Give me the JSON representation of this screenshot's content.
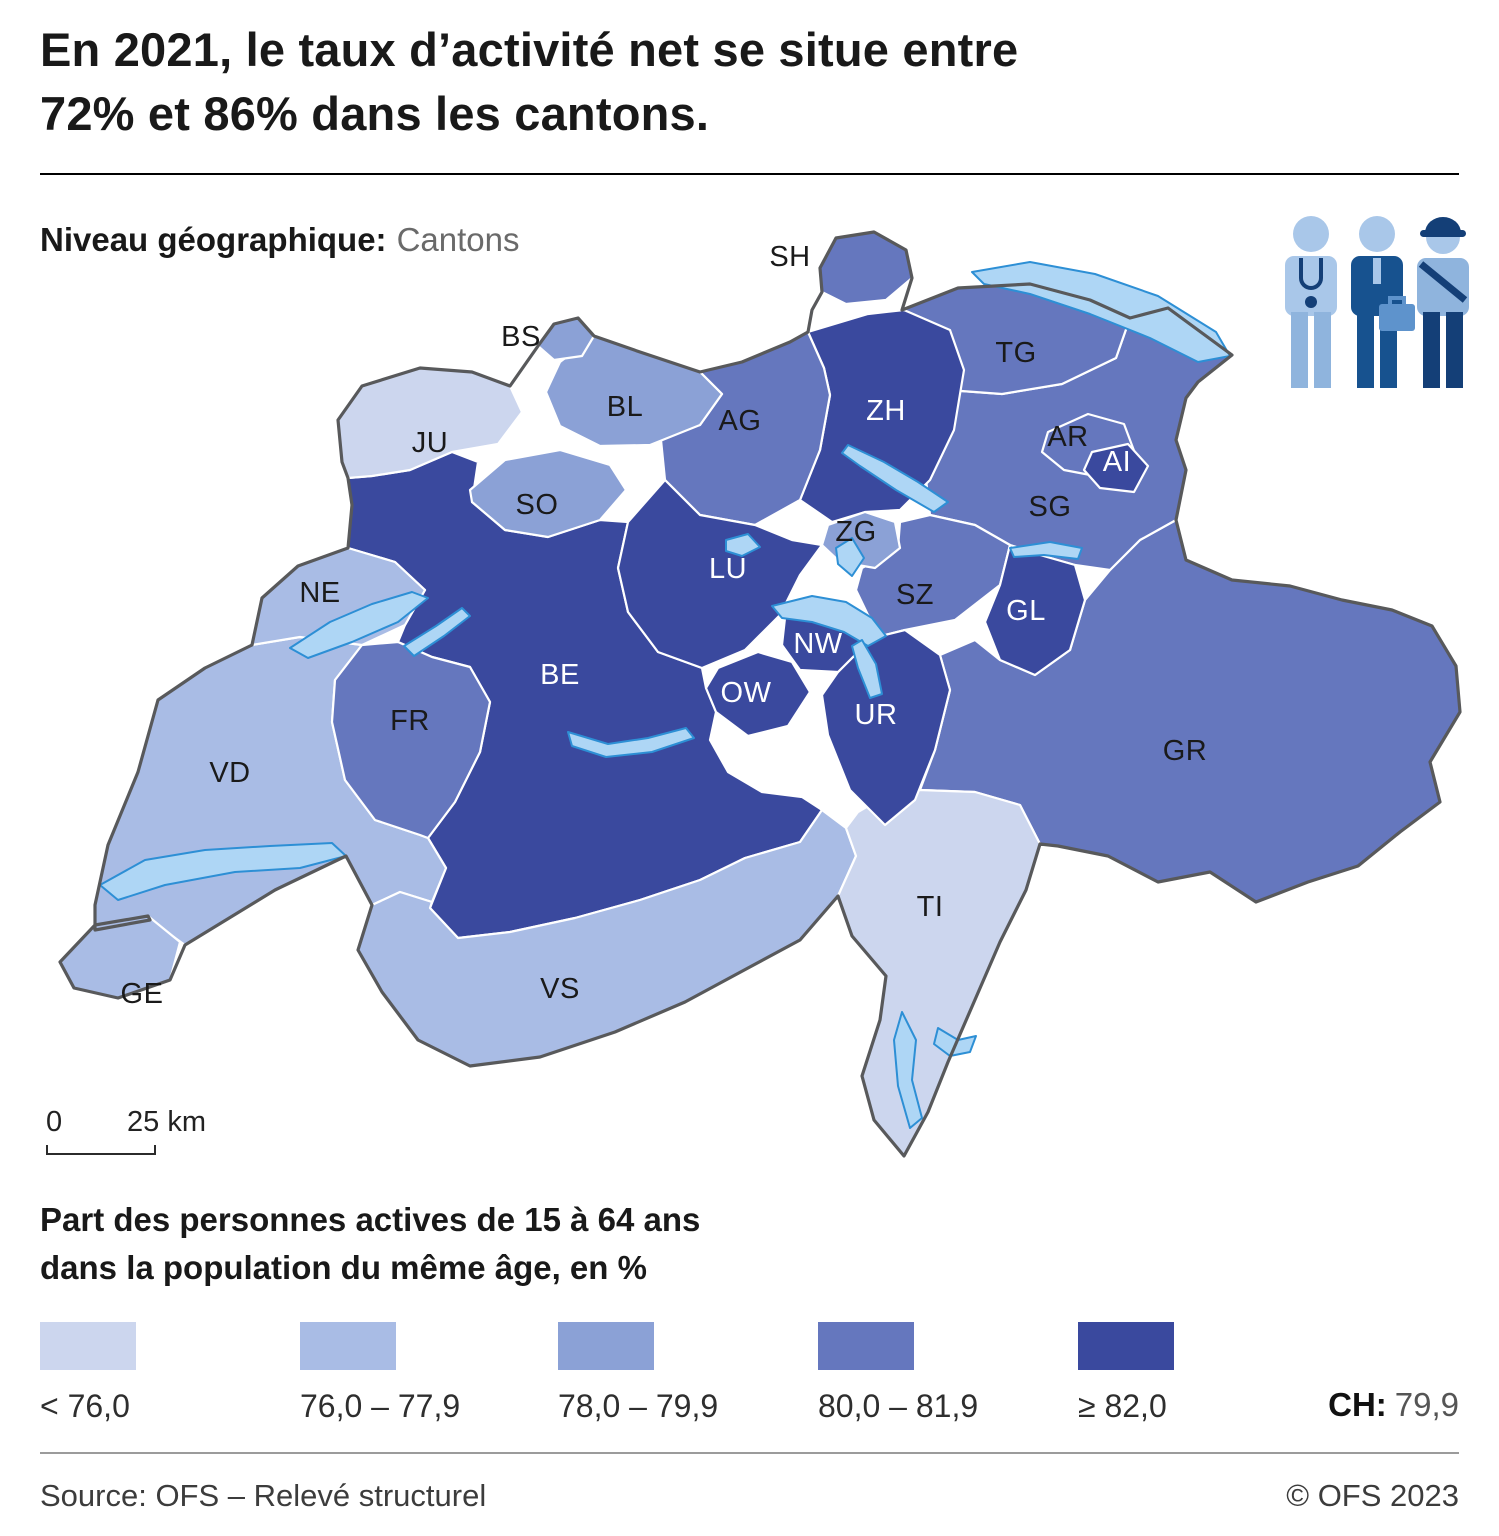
{
  "title": {
    "line1": "En 2021, le taux d’activité net se situe entre",
    "line2": "72% et 86% dans les cantons."
  },
  "subtitle": {
    "label": "Niveau géographique:",
    "value": "Cantons"
  },
  "map": {
    "label_dark": "#1a1a1a",
    "label_light": "#ffffff",
    "lake_fill": "#aed6f5",
    "lake_stroke": "#2d8fd5",
    "outline_color": "#58595b",
    "canton_border": "#ffffff",
    "cantons": [
      {
        "code": "GR",
        "class": 4
      },
      {
        "code": "BE",
        "class": 5
      },
      {
        "code": "VD",
        "class": 2
      },
      {
        "code": "VS",
        "class": 2
      },
      {
        "code": "TI",
        "class": 1
      },
      {
        "code": "SG",
        "class": 4
      },
      {
        "code": "TG",
        "class": 4
      },
      {
        "code": "ZH",
        "class": 5
      },
      {
        "code": "AG",
        "class": 4
      },
      {
        "code": "JU",
        "class": 1
      },
      {
        "code": "NE",
        "class": 2
      },
      {
        "code": "FR",
        "class": 4
      },
      {
        "code": "LU",
        "class": 5
      },
      {
        "code": "SO",
        "class": 3
      },
      {
        "code": "BL",
        "class": 3
      },
      {
        "code": "BS",
        "class": 3
      },
      {
        "code": "SH",
        "class": 4
      },
      {
        "code": "SZ",
        "class": 4
      },
      {
        "code": "UR",
        "class": 5
      },
      {
        "code": "GL",
        "class": 5
      },
      {
        "code": "OW",
        "class": 5
      },
      {
        "code": "NW",
        "class": 5
      },
      {
        "code": "ZG",
        "class": 3
      },
      {
        "code": "AR",
        "class": 4
      },
      {
        "code": "AI",
        "class": 5
      },
      {
        "code": "GE",
        "class": 2
      }
    ]
  },
  "scalebar": {
    "start": "0",
    "label": "25 km"
  },
  "legend": {
    "title_line1": "Part des personnes actives de 15 à 64 ans",
    "title_line2": "dans la population du même âge, en %",
    "classes": [
      {
        "label": "< 76,0",
        "color": "#ccd6ee"
      },
      {
        "label": "76,0 – 77,9",
        "color": "#a9bce5"
      },
      {
        "label": "78,0 – 79,9",
        "color": "#8ba1d6"
      },
      {
        "label": "80,0 – 81,9",
        "color": "#6577be"
      },
      {
        "label": "≥ 82,0",
        "color": "#3a499e"
      }
    ],
    "ch_label": "CH:",
    "ch_value": "79,9"
  },
  "footer": {
    "source": "Source: OFS – Relevé structurel",
    "copyright": "© OFS 2023"
  }
}
